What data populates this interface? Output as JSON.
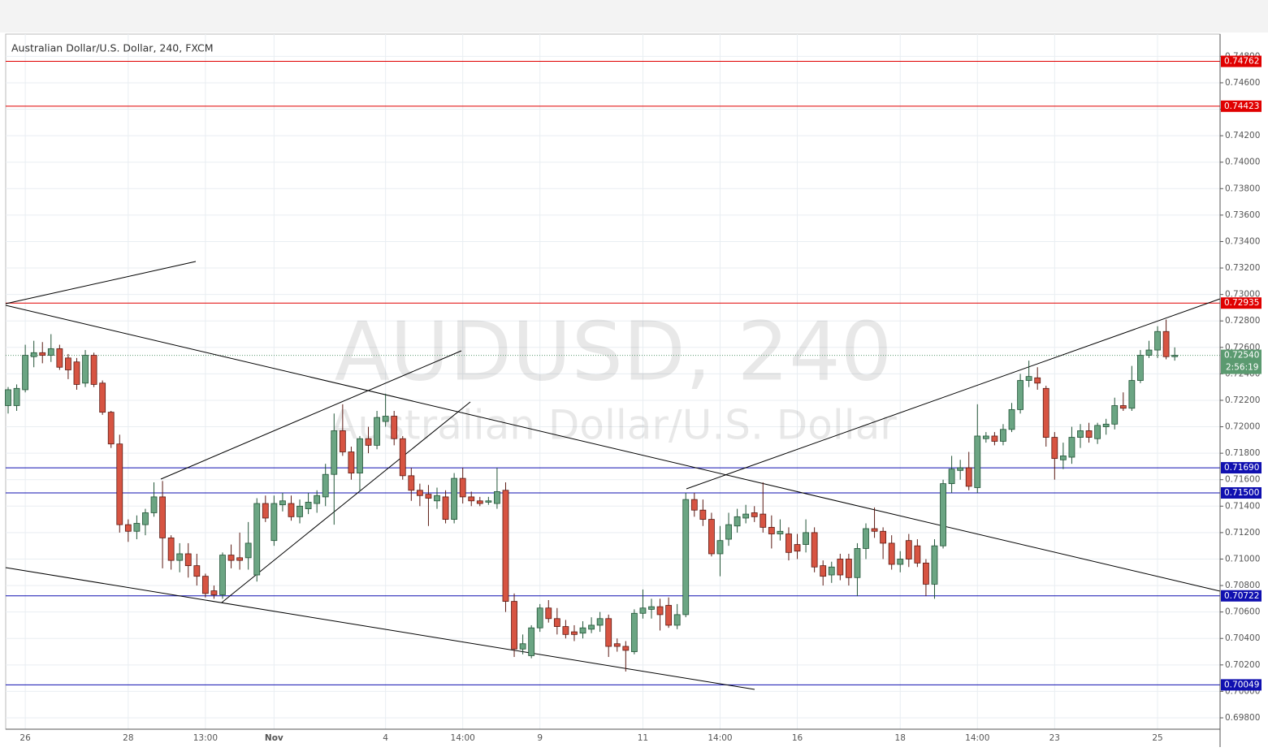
{
  "chart_data": {
    "type": "candlestick",
    "title": "Australian Dollar/U.S. Dollar, 240, FXCM",
    "watermark": "AUDUSD, 240",
    "watermark_subtitle": "Australian Dollar/U.S. Dollar",
    "up_color": "#6ba583",
    "down_color": "#d75442",
    "up_outline": "#225437",
    "down_outline": "#5b1a13",
    "categories": [
      null,
      null,
      "26",
      null,
      null,
      null,
      null,
      null,
      null,
      null,
      null,
      null,
      null,
      null,
      "28",
      null,
      null,
      null,
      null,
      null,
      null,
      null,
      null,
      "13:00",
      null,
      null,
      null,
      null,
      null,
      null,
      null,
      "Nov",
      null,
      null,
      null,
      null,
      null,
      null,
      null,
      null,
      null,
      null,
      null,
      null,
      "4",
      null,
      null,
      null,
      null,
      null,
      null,
      null,
      null,
      "14:00",
      null,
      null,
      null,
      null,
      null,
      null,
      null,
      null,
      "9",
      null,
      null,
      null,
      null,
      null,
      null,
      null,
      null,
      null,
      null,
      null,
      "11",
      null,
      null,
      null,
      null,
      null,
      null,
      null,
      null,
      "14:00",
      null,
      null,
      null,
      null,
      null,
      null,
      null,
      null,
      "16",
      null,
      null,
      null,
      null,
      null,
      null,
      null,
      null,
      null,
      null,
      null,
      "18",
      null,
      null,
      null,
      null,
      null,
      null,
      null,
      null,
      "14:00",
      null,
      null,
      null,
      null,
      null,
      null,
      null,
      null,
      "23",
      null,
      null,
      null,
      null,
      null,
      null,
      null,
      null,
      null,
      null,
      null,
      "25",
      null,
      null
    ],
    "open": [
      0.7216,
      0.7216,
      0.7228,
      0.7253,
      0.7256,
      0.7254,
      0.7259,
      0.7252,
      0.7249,
      0.7233,
      0.7254,
      0.7233,
      0.7211,
      0.7187,
      0.7126,
      0.7121,
      0.7126,
      0.7135,
      0.7147,
      0.7116,
      0.7099,
      0.7104,
      0.7095,
      0.7087,
      0.7076,
      0.7073,
      0.7103,
      0.7101,
      0.7101,
      0.7088,
      0.7142,
      0.7114,
      0.7141,
      0.7142,
      0.7132,
      0.7138,
      0.7142,
      0.7147,
      0.7164,
      0.7197,
      0.7181,
      0.7165,
      0.7191,
      0.7186,
      0.7204,
      0.7208,
      0.7191,
      0.7163,
      0.7152,
      0.7149,
      0.7144,
      0.7147,
      0.713,
      0.7161,
      0.7147,
      0.7144,
      0.7143,
      0.7142,
      0.7152,
      0.7068,
      0.7032,
      0.7027,
      0.7048,
      0.7063,
      0.7055,
      0.7049,
      0.7045,
      0.7044,
      0.7047,
      0.705,
      0.7055,
      0.7036,
      0.7034,
      0.703,
      0.7059,
      0.7062,
      0.7064,
      0.7065,
      0.705,
      0.7058,
      0.7145,
      0.7137,
      0.713,
      0.7104,
      0.7115,
      0.7125,
      0.7131,
      0.7135,
      0.7134,
      0.7124,
      0.7119,
      0.7119,
      0.7111,
      0.7111,
      0.712,
      0.7095,
      0.7088,
      0.71,
      0.71,
      0.7086,
      0.7108,
      0.7123,
      0.7121,
      0.7112,
      0.7096,
      0.7114,
      0.711,
      0.7097,
      0.7081,
      0.711,
      0.7157,
      0.7167,
      0.7169,
      0.7154,
      0.7191,
      0.7193,
      0.7189,
      0.7198,
      0.7213,
      0.7235,
      0.7237,
      0.7229,
      0.7192,
      0.7175,
      0.7177,
      0.7192,
      0.7197,
      0.7191,
      0.72,
      0.7202,
      0.7216,
      0.7214,
      0.7235,
      0.7254,
      0.7258,
      0.7272,
      0.7253
    ],
    "high": [
      0.723,
      0.7232,
      0.7262,
      0.7265,
      0.7264,
      0.727,
      0.7262,
      0.7255,
      0.7252,
      0.7258,
      0.7256,
      0.7235,
      0.7212,
      0.7194,
      0.713,
      0.7133,
      0.7138,
      0.7158,
      0.7159,
      0.7118,
      0.7112,
      0.7112,
      0.7104,
      0.7089,
      0.708,
      0.7105,
      0.7111,
      0.712,
      0.7128,
      0.7146,
      0.7148,
      0.7148,
      0.715,
      0.7148,
      0.7145,
      0.715,
      0.7152,
      0.7172,
      0.721,
      0.7217,
      0.7185,
      0.7193,
      0.72,
      0.7212,
      0.7225,
      0.7212,
      0.7193,
      0.7169,
      0.7157,
      0.7156,
      0.7154,
      0.7152,
      0.7165,
      0.7169,
      0.7151,
      0.7147,
      0.7147,
      0.7169,
      0.7158,
      0.7074,
      0.7043,
      0.705,
      0.7066,
      0.7069,
      0.7063,
      0.7054,
      0.705,
      0.7053,
      0.7056,
      0.706,
      0.7058,
      0.704,
      0.7038,
      0.7062,
      0.7077,
      0.707,
      0.707,
      0.7071,
      0.7066,
      0.715,
      0.715,
      0.7145,
      0.7135,
      0.7125,
      0.7135,
      0.7138,
      0.7141,
      0.714,
      0.7158,
      0.7133,
      0.713,
      0.7124,
      0.7119,
      0.713,
      0.7124,
      0.7099,
      0.7098,
      0.7104,
      0.7104,
      0.7112,
      0.7127,
      0.7139,
      0.7124,
      0.7118,
      0.7106,
      0.7119,
      0.7115,
      0.71,
      0.7115,
      0.716,
      0.7178,
      0.7175,
      0.7181,
      0.7217,
      0.7196,
      0.7196,
      0.7202,
      0.7218,
      0.724,
      0.725,
      0.7245,
      0.7231,
      0.7196,
      0.7188,
      0.72,
      0.7202,
      0.7203,
      0.7203,
      0.7206,
      0.7222,
      0.7226,
      0.7246,
      0.7258,
      0.7265,
      0.7276,
      0.7281,
      0.726
    ],
    "low": [
      0.721,
      0.7212,
      0.7226,
      0.7245,
      0.7248,
      0.7249,
      0.7243,
      0.7236,
      0.7228,
      0.723,
      0.723,
      0.7209,
      0.7184,
      0.712,
      0.7113,
      0.7115,
      0.7118,
      0.7132,
      0.7093,
      0.7092,
      0.709,
      0.7086,
      0.708,
      0.7071,
      0.707,
      0.707,
      0.7093,
      0.7092,
      0.7092,
      0.7083,
      0.7128,
      0.711,
      0.7136,
      0.7129,
      0.7127,
      0.7134,
      0.7135,
      0.714,
      0.7126,
      0.7178,
      0.716,
      0.7151,
      0.718,
      0.7183,
      0.72,
      0.7186,
      0.716,
      0.7144,
      0.714,
      0.7125,
      0.7138,
      0.7127,
      0.7127,
      0.7142,
      0.714,
      0.714,
      0.7141,
      0.7138,
      0.706,
      0.7026,
      0.7028,
      0.7025,
      0.7045,
      0.7052,
      0.7043,
      0.704,
      0.7038,
      0.704,
      0.7044,
      0.7045,
      0.7026,
      0.703,
      0.7015,
      0.7028,
      0.7055,
      0.7055,
      0.7046,
      0.7048,
      0.7047,
      0.7056,
      0.7132,
      0.7125,
      0.7102,
      0.7087,
      0.711,
      0.712,
      0.7127,
      0.7128,
      0.712,
      0.7108,
      0.7114,
      0.7099,
      0.71,
      0.7105,
      0.709,
      0.708,
      0.7082,
      0.7084,
      0.708,
      0.7072,
      0.71,
      0.7116,
      0.71,
      0.7092,
      0.709,
      0.7094,
      0.7094,
      0.7072,
      0.707,
      0.7108,
      0.715,
      0.716,
      0.7152,
      0.715,
      0.7188,
      0.7186,
      0.7186,
      0.7196,
      0.721,
      0.723,
      0.7228,
      0.7185,
      0.716,
      0.7168,
      0.7172,
      0.7184,
      0.7188,
      0.7187,
      0.7194,
      0.7198,
      0.7212,
      0.7212,
      0.7233,
      0.7252,
      0.7252,
      0.7251,
      0.725
    ],
    "close": [
      0.7228,
      0.7229,
      0.7254,
      0.7256,
      0.7254,
      0.7259,
      0.7245,
      0.7243,
      0.7232,
      0.7254,
      0.7232,
      0.7211,
      0.7187,
      0.7126,
      0.7121,
      0.7127,
      0.7135,
      0.7147,
      0.7116,
      0.7099,
      0.7104,
      0.7095,
      0.7087,
      0.7074,
      0.7073,
      0.7103,
      0.7099,
      0.7099,
      0.7112,
      0.7142,
      0.7131,
      0.7142,
      0.7144,
      0.7132,
      0.714,
      0.7143,
      0.7148,
      0.7164,
      0.7197,
      0.7181,
      0.7165,
      0.7191,
      0.7186,
      0.7207,
      0.7208,
      0.7191,
      0.7163,
      0.7152,
      0.7148,
      0.7146,
      0.7148,
      0.713,
      0.7161,
      0.7147,
      0.7144,
      0.7142,
      0.7144,
      0.7151,
      0.7068,
      0.7032,
      0.7036,
      0.7048,
      0.7063,
      0.7055,
      0.7049,
      0.7043,
      0.7043,
      0.7048,
      0.705,
      0.7055,
      0.7034,
      0.7034,
      0.7031,
      0.7059,
      0.7063,
      0.7064,
      0.7058,
      0.705,
      0.7058,
      0.7145,
      0.7137,
      0.713,
      0.7104,
      0.7114,
      0.7126,
      0.7132,
      0.7134,
      0.7132,
      0.7124,
      0.7119,
      0.7121,
      0.7105,
      0.7106,
      0.712,
      0.7094,
      0.7087,
      0.7094,
      0.7088,
      0.7086,
      0.7108,
      0.7123,
      0.7121,
      0.7112,
      0.7096,
      0.71,
      0.71,
      0.7097,
      0.7081,
      0.711,
      0.7157,
      0.7168,
      0.7169,
      0.7155,
      0.7193,
      0.7193,
      0.7189,
      0.7198,
      0.7213,
      0.7235,
      0.7238,
      0.7233,
      0.7192,
      0.7176,
      0.7178,
      0.7192,
      0.7197,
      0.7192,
      0.7201,
      0.7202,
      0.7216,
      0.7214,
      0.7235,
      0.7254,
      0.7258,
      0.7272,
      0.7253,
      0.7254
    ],
    "ylim": [
      0.69714,
      0.74968
    ],
    "yticks": [
      {
        "value": 0.698,
        "label": "0.69800"
      },
      {
        "value": 0.7,
        "label": "0.70000"
      },
      {
        "value": 0.702,
        "label": "0.70200"
      },
      {
        "value": 0.704,
        "label": "0.70400"
      },
      {
        "value": 0.706,
        "label": "0.70600"
      },
      {
        "value": 0.708,
        "label": "0.70800"
      },
      {
        "value": 0.71,
        "label": "0.71000"
      },
      {
        "value": 0.712,
        "label": "0.71200"
      },
      {
        "value": 0.714,
        "label": "0.71400"
      },
      {
        "value": 0.716,
        "label": "0.71600"
      },
      {
        "value": 0.718,
        "label": "0.71800"
      },
      {
        "value": 0.72,
        "label": "0.72000"
      },
      {
        "value": 0.722,
        "label": "0.72200"
      },
      {
        "value": 0.724,
        "label": "0.72400"
      },
      {
        "value": 0.726,
        "label": "0.72600"
      },
      {
        "value": 0.728,
        "label": "0.72800"
      },
      {
        "value": 0.73,
        "label": "0.73000"
      },
      {
        "value": 0.732,
        "label": "0.73200"
      },
      {
        "value": 0.734,
        "label": "0.73400"
      },
      {
        "value": 0.736,
        "label": "0.73600"
      },
      {
        "value": 0.738,
        "label": "0.73800"
      },
      {
        "value": 0.74,
        "label": "0.74000"
      },
      {
        "value": 0.742,
        "label": "0.74200"
      },
      {
        "value": 0.744,
        "label": "0.74400"
      },
      {
        "value": 0.746,
        "label": "0.74600"
      },
      {
        "value": 0.748,
        "label": "0.74800"
      }
    ],
    "grid": true,
    "levels": [
      {
        "value": 0.74762,
        "label": "0.74762",
        "color": "#e00000"
      },
      {
        "value": 0.74423,
        "label": "0.74423",
        "color": "#e00000"
      },
      {
        "value": 0.72935,
        "label": "0.72935",
        "color": "#e00000"
      },
      {
        "value": 0.7169,
        "label": "0.71690",
        "color": "#1010b0"
      },
      {
        "value": 0.715,
        "label": "0.71500",
        "color": "#1010b0"
      },
      {
        "value": 0.70722,
        "label": "0.70722",
        "color": "#1010b0"
      },
      {
        "value": 0.70049,
        "label": "0.70049",
        "color": "#1010b0"
      }
    ],
    "last_price": {
      "value": 0.7254,
      "label": "0.72540",
      "countdown": "2:56:19",
      "color": "#5b9a70"
    }
  }
}
